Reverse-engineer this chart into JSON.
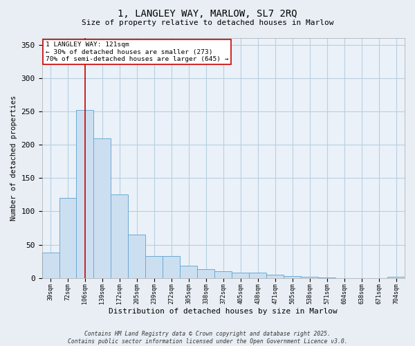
{
  "title_line1": "1, LANGLEY WAY, MARLOW, SL7 2RQ",
  "title_line2": "Size of property relative to detached houses in Marlow",
  "xlabel": "Distribution of detached houses by size in Marlow",
  "ylabel": "Number of detached properties",
  "bar_labels": [
    "39sqm",
    "72sqm",
    "106sqm",
    "139sqm",
    "172sqm",
    "205sqm",
    "239sqm",
    "272sqm",
    "305sqm",
    "338sqm",
    "372sqm",
    "405sqm",
    "438sqm",
    "471sqm",
    "505sqm",
    "538sqm",
    "571sqm",
    "604sqm",
    "638sqm",
    "671sqm",
    "704sqm"
  ],
  "bar_heights": [
    38,
    120,
    252,
    210,
    125,
    65,
    33,
    33,
    19,
    13,
    10,
    8,
    8,
    5,
    3,
    2,
    1,
    0,
    0,
    0,
    2
  ],
  "bar_color": "#ccdff0",
  "bar_edge_color": "#6aaad4",
  "red_line_index": 2,
  "red_line_color": "#cc0000",
  "ylim": [
    0,
    360
  ],
  "yticks": [
    0,
    50,
    100,
    150,
    200,
    250,
    300,
    350
  ],
  "annotation_text": "1 LANGLEY WAY: 121sqm\n← 30% of detached houses are smaller (273)\n70% of semi-detached houses are larger (645) →",
  "annotation_box_color": "#ffffff",
  "annotation_box_edge": "#cc0000",
  "footer_line1": "Contains HM Land Registry data © Crown copyright and database right 2025.",
  "footer_line2": "Contains public sector information licensed under the Open Government Licence v3.0.",
  "bg_color": "#e8eef4",
  "plot_bg_color": "#eaf1f8",
  "grid_color": "#b8cfe0"
}
